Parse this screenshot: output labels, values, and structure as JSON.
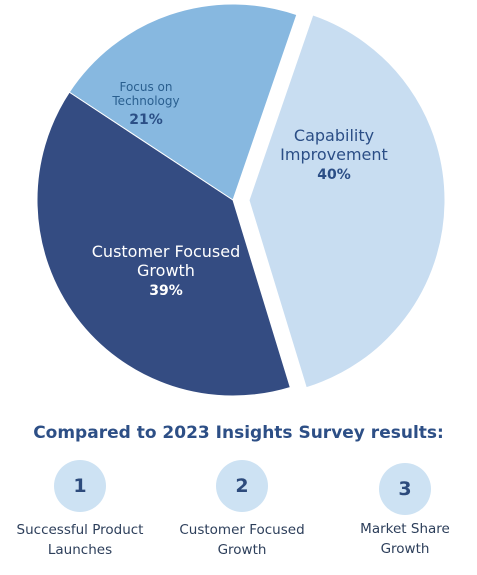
{
  "chart_data": {
    "type": "pie",
    "slices": [
      {
        "key": "capability",
        "name": "Capability\nImprovement",
        "value": 40,
        "label": "40%",
        "color": "#c8ddf1",
        "exploded": true
      },
      {
        "key": "customer",
        "name": "Customer Focused\nGrowth",
        "value": 39,
        "label": "39%",
        "color": "#344c82",
        "exploded": false
      },
      {
        "key": "technology",
        "name": "Focus on\nTechnology",
        "value": 21,
        "label": "21%",
        "color": "#87b8e0",
        "exploded": false
      }
    ]
  },
  "labels": {
    "technology": {
      "line1": "Focus on",
      "line2": "Technology",
      "pct": "21%"
    },
    "capability": {
      "line1": "Capability",
      "line2": "Improvement",
      "pct": "40%"
    },
    "customer": {
      "line1": "Customer Focused",
      "line2": "Growth",
      "pct": "39%"
    }
  },
  "comparison": {
    "heading": "Compared to 2023 Insights Survey results:",
    "items": [
      {
        "rank": "1",
        "label": "Successful Product\nLaunches"
      },
      {
        "rank": "2",
        "label": "Customer Focused\nGrowth"
      },
      {
        "rank": "3",
        "label": "Market Share\nGrowth"
      }
    ]
  },
  "colors": {
    "accent": "#2d4f86",
    "rank_circle": "#cde2f3"
  }
}
